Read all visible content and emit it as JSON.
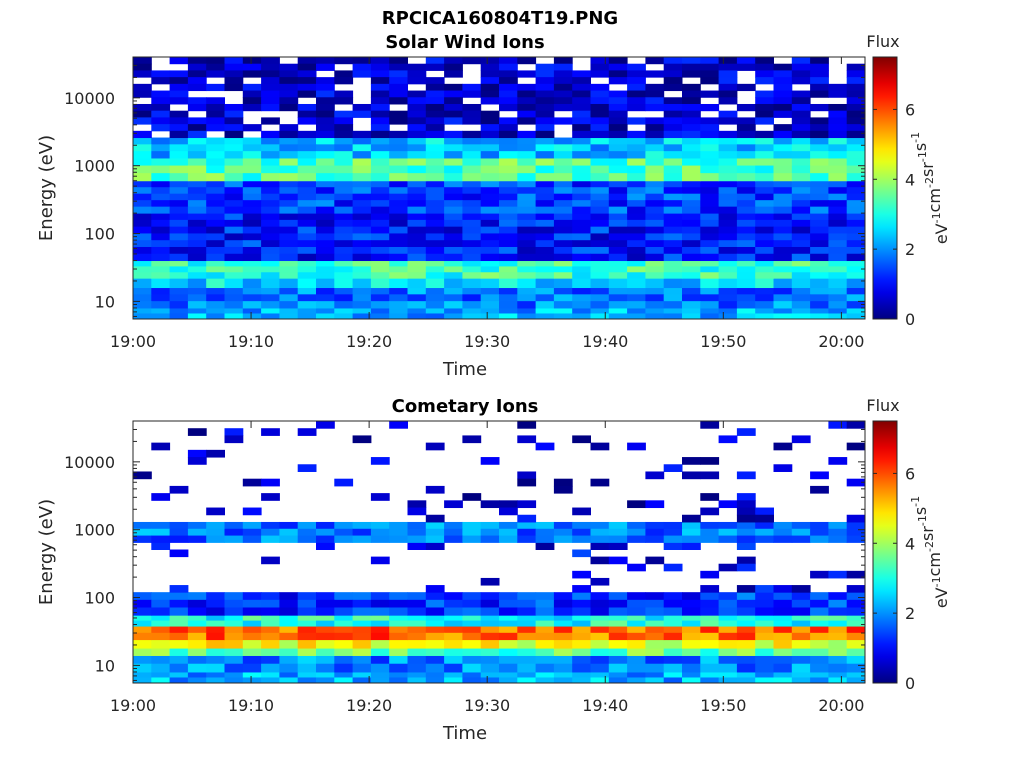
{
  "figure_title": "RPCICA160804T19.PNG",
  "chart_data": [
    {
      "type": "heatmap",
      "title": "Solar Wind Ions",
      "xlabel": "Time",
      "ylabel": "Energy (eV)",
      "x_range": [
        "19:00",
        "20:02"
      ],
      "x_ticks": [
        "19:00",
        "19:10",
        "19:20",
        "19:30",
        "19:40",
        "19:50",
        "20:00"
      ],
      "y_scale": "log",
      "y_range": [
        5.5,
        40000
      ],
      "y_ticks": [
        10,
        100,
        1000,
        10000
      ],
      "y_tick_labels": [
        "10",
        "100",
        "1000",
        "10000"
      ],
      "colorbar": {
        "title": "Flux",
        "label": "eV-1cm-2sr-1s-1",
        "range": [
          0,
          7.5
        ],
        "ticks": [
          0,
          2,
          4,
          6
        ],
        "tick_labels": [
          "0",
          "2",
          "4",
          "6"
        ],
        "colormap": "jet"
      },
      "bands": [
        {
          "energy_range": [
            5.5,
            8
          ],
          "flux": 2.2
        },
        {
          "energy_range": [
            8,
            16
          ],
          "flux": 1.8
        },
        {
          "energy_range": [
            16,
            22
          ],
          "flux": 2.6
        },
        {
          "energy_range": [
            22,
            40
          ],
          "flux": 3.2
        },
        {
          "energy_range": [
            40,
            200
          ],
          "flux": 1.1
        },
        {
          "energy_range": [
            200,
            600
          ],
          "flux": 1.4
        },
        {
          "energy_range": [
            600,
            1300
          ],
          "flux": 3.4
        },
        {
          "energy_range": [
            1300,
            2600
          ],
          "flux": 2.4
        },
        {
          "energy_range": [
            2600,
            40000
          ],
          "flux": 0.6
        }
      ]
    },
    {
      "type": "heatmap",
      "title": "Cometary Ions",
      "xlabel": "Time",
      "ylabel": "Energy (eV)",
      "x_range": [
        "19:00",
        "20:02"
      ],
      "x_ticks": [
        "19:00",
        "19:10",
        "19:20",
        "19:30",
        "19:40",
        "19:50",
        "20:00"
      ],
      "y_scale": "log",
      "y_range": [
        5.5,
        40000
      ],
      "y_ticks": [
        10,
        100,
        1000,
        10000
      ],
      "y_tick_labels": [
        "10",
        "100",
        "1000",
        "10000"
      ],
      "colorbar": {
        "title": "Flux",
        "label": "eV-1cm-2sr-1s-1",
        "range": [
          0,
          7.5
        ],
        "ticks": [
          0,
          2,
          4,
          6
        ],
        "tick_labels": [
          "0",
          "2",
          "4",
          "6"
        ],
        "colormap": "jet"
      },
      "bands": [
        {
          "energy_range": [
            5.5,
            8
          ],
          "flux": 2.2
        },
        {
          "energy_range": [
            8,
            14
          ],
          "flux": 1.9
        },
        {
          "energy_range": [
            14,
            18
          ],
          "flux": 3.5
        },
        {
          "energy_range": [
            18,
            24
          ],
          "flux": 4.6
        },
        {
          "energy_range": [
            24,
            38
          ],
          "flux": 5.8
        },
        {
          "energy_range": [
            38,
            55
          ],
          "flux": 3.0
        },
        {
          "energy_range": [
            55,
            120
          ],
          "flux": 1.3
        },
        {
          "energy_range": [
            120,
            650
          ],
          "flux": 0.8
        },
        {
          "energy_range": [
            650,
            1300
          ],
          "flux": 1.8
        },
        {
          "energy_range": [
            1300,
            40000
          ],
          "flux": 0.5
        }
      ]
    }
  ]
}
